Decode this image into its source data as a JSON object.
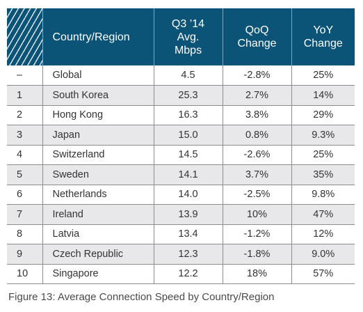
{
  "table": {
    "headers": {
      "country": "Country/Region",
      "avg_line1": "Q3 ’14",
      "avg_line2": "Avg.",
      "avg_line3": "Mbps",
      "qoq_line1": "QoQ",
      "qoq_line2": "Change",
      "yoy_line1": "YoY",
      "yoy_line2": "Change"
    },
    "header_color": "#0b5377",
    "stripe_color": "#e8e8ea",
    "rows": [
      {
        "rank": "–",
        "country": "Global",
        "avg": "4.5",
        "qoq": "-2.8%",
        "yoy": "25%"
      },
      {
        "rank": "1",
        "country": "South Korea",
        "avg": "25.3",
        "qoq": "2.7%",
        "yoy": "14%"
      },
      {
        "rank": "2",
        "country": "Hong Kong",
        "avg": "16.3",
        "qoq": "3.8%",
        "yoy": "29%"
      },
      {
        "rank": "3",
        "country": "Japan",
        "avg": "15.0",
        "qoq": "0.8%",
        "yoy": "9.3%"
      },
      {
        "rank": "4",
        "country": "Switzerland",
        "avg": "14.5",
        "qoq": "-2.6%",
        "yoy": "25%"
      },
      {
        "rank": "5",
        "country": "Sweden",
        "avg": "14.1",
        "qoq": "3.7%",
        "yoy": "35%"
      },
      {
        "rank": "6",
        "country": "Netherlands",
        "avg": "14.0",
        "qoq": "-2.5%",
        "yoy": "9.8%"
      },
      {
        "rank": "7",
        "country": "Ireland",
        "avg": "13.9",
        "qoq": "10%",
        "yoy": "47%"
      },
      {
        "rank": "8",
        "country": "Latvia",
        "avg": "13.4",
        "qoq": "-1.2%",
        "yoy": "12%"
      },
      {
        "rank": "9",
        "country": "Czech Republic",
        "avg": "12.3",
        "qoq": "-1.8%",
        "yoy": "9.0%"
      },
      {
        "rank": "10",
        "country": "Singapore",
        "avg": "12.2",
        "qoq": "18%",
        "yoy": "57%"
      }
    ]
  },
  "caption": "Figure 13: Average Connection Speed by Country/Region"
}
